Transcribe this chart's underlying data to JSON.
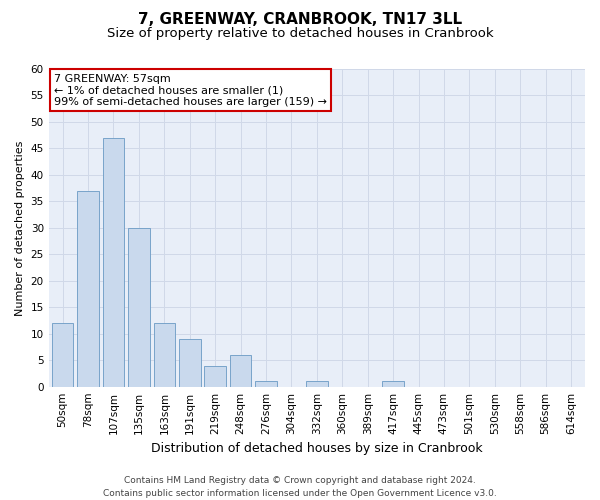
{
  "title": "7, GREENWAY, CRANBROOK, TN17 3LL",
  "subtitle": "Size of property relative to detached houses in Cranbrook",
  "xlabel": "Distribution of detached houses by size in Cranbrook",
  "ylabel": "Number of detached properties",
  "categories": [
    "50sqm",
    "78sqm",
    "107sqm",
    "135sqm",
    "163sqm",
    "191sqm",
    "219sqm",
    "248sqm",
    "276sqm",
    "304sqm",
    "332sqm",
    "360sqm",
    "389sqm",
    "417sqm",
    "445sqm",
    "473sqm",
    "501sqm",
    "530sqm",
    "558sqm",
    "586sqm",
    "614sqm"
  ],
  "values": [
    12,
    37,
    47,
    30,
    12,
    9,
    4,
    6,
    1,
    0,
    1,
    0,
    0,
    1,
    0,
    0,
    0,
    0,
    0,
    0,
    0
  ],
  "bar_color": "#c9d9ed",
  "bar_edge_color": "#6a9ac4",
  "annotation_box_text": "7 GREENWAY: 57sqm\n← 1% of detached houses are smaller (1)\n99% of semi-detached houses are larger (159) →",
  "annotation_box_color": "#ffffff",
  "annotation_box_edge_color": "#cc0000",
  "ylim": [
    0,
    60
  ],
  "yticks": [
    0,
    5,
    10,
    15,
    20,
    25,
    30,
    35,
    40,
    45,
    50,
    55,
    60
  ],
  "grid_color": "#d0d8e8",
  "plot_bg_color": "#e8eef8",
  "background_color": "#ffffff",
  "footer_text": "Contains HM Land Registry data © Crown copyright and database right 2024.\nContains public sector information licensed under the Open Government Licence v3.0.",
  "title_fontsize": 11,
  "subtitle_fontsize": 9.5,
  "xlabel_fontsize": 9,
  "ylabel_fontsize": 8,
  "tick_fontsize": 7.5,
  "annotation_fontsize": 8,
  "footer_fontsize": 6.5
}
